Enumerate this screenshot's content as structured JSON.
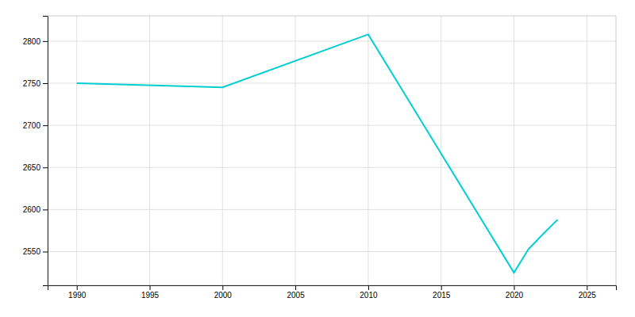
{
  "chart_data": {
    "type": "line",
    "x": [
      1990,
      2000,
      2010,
      2020,
      2021,
      2022,
      2023
    ],
    "values": [
      2750,
      2745,
      2808,
      2525,
      2553,
      2571,
      2588
    ],
    "color": "#00CED1",
    "xlim": [
      1988,
      2027
    ],
    "ylim": [
      2510,
      2830
    ],
    "xticks": [
      1990,
      1995,
      2000,
      2005,
      2010,
      2015,
      2020,
      2025
    ],
    "yticks": [
      2550,
      2600,
      2650,
      2700,
      2750,
      2800
    ],
    "grid": true
  }
}
